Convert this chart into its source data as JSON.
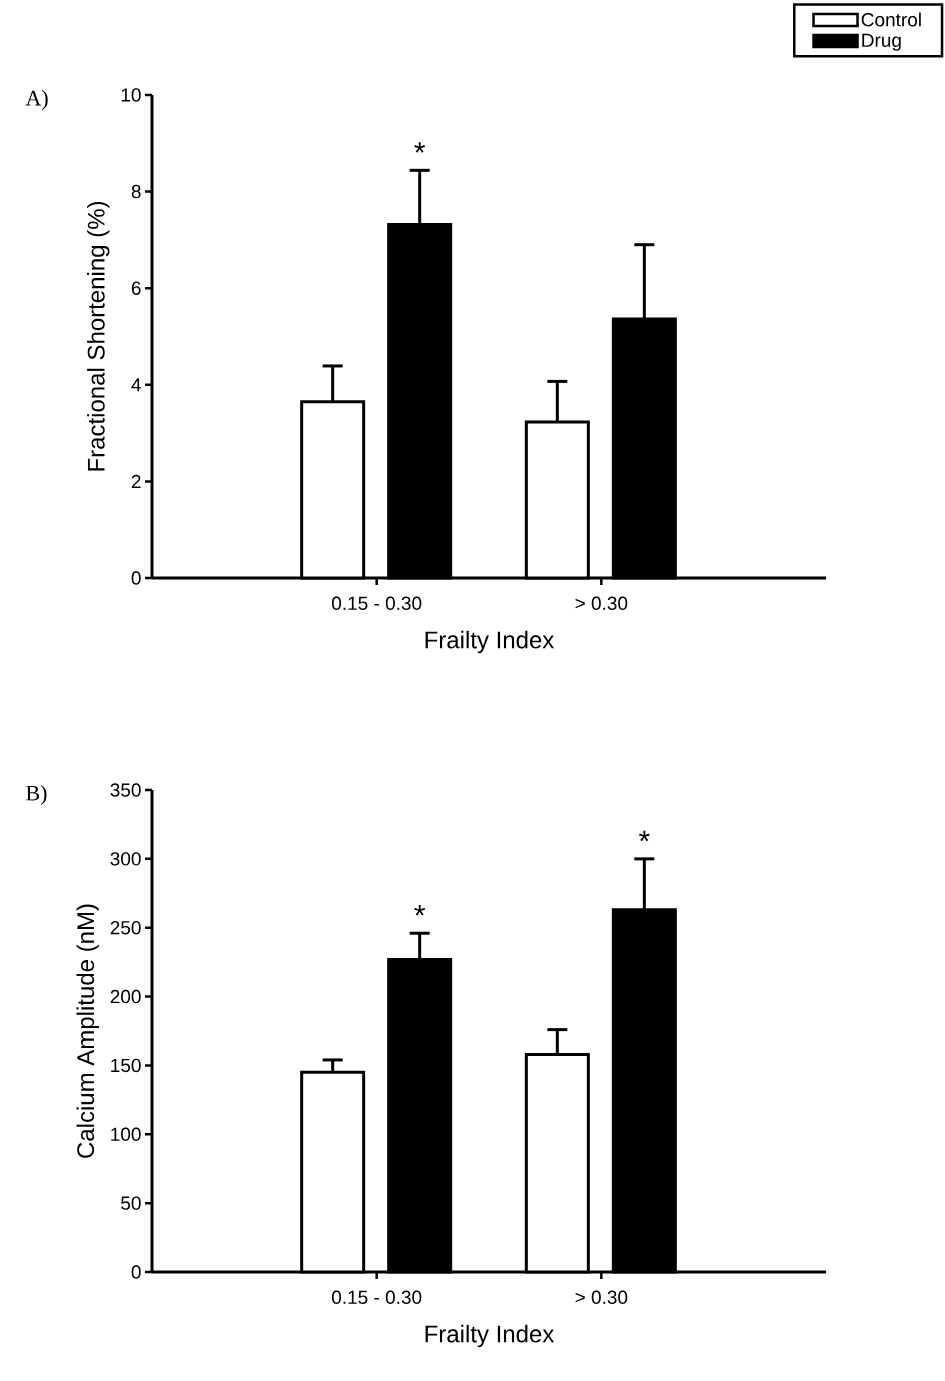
{
  "chart_data": [
    {
      "type": "bar",
      "title": "A)",
      "categories": [
        "0.15 - 0.30",
        "> 0.30"
      ],
      "xlabel": "Frailty Index",
      "ylabel": "Fractional Shortening (%)",
      "ylim": [
        0,
        10
      ],
      "yticks": [
        0,
        2,
        4,
        6,
        8,
        10
      ],
      "legend": "top right",
      "series": [
        {
          "name": "Control",
          "color": "#ffffff",
          "values": [
            3.65,
            3.23
          ],
          "errors": [
            [
              3.65,
              4.39
            ],
            [
              3.23,
              4.07
            ]
          ]
        },
        {
          "name": "Drug",
          "color": "#000000",
          "values": [
            7.32,
            5.36
          ],
          "errors": [
            [
              7.32,
              8.44
            ],
            [
              5.36,
              6.9
            ]
          ],
          "value_labels": [
            "*",
            null
          ]
        }
      ]
    },
    {
      "type": "bar",
      "title": "B)",
      "categories": [
        "0.15 - 0.30",
        "> 0.30"
      ],
      "xlabel": "Frailty Index",
      "ylabel": "Calcium Amplitude (nM)",
      "ylim": [
        0,
        350
      ],
      "yticks": [
        0,
        50,
        100,
        150,
        200,
        250,
        300,
        350
      ],
      "series": [
        {
          "color": "#ffffff",
          "values": [
            145,
            158
          ],
          "errors": [
            [
              145,
              154
            ],
            [
              158,
              176
            ]
          ]
        },
        {
          "color": "#000000",
          "values": [
            227,
            263
          ],
          "errors": [
            [
              227,
              246
            ],
            [
              263,
              300
            ]
          ],
          "value_labels": [
            "*",
            "*"
          ]
        }
      ]
    }
  ]
}
